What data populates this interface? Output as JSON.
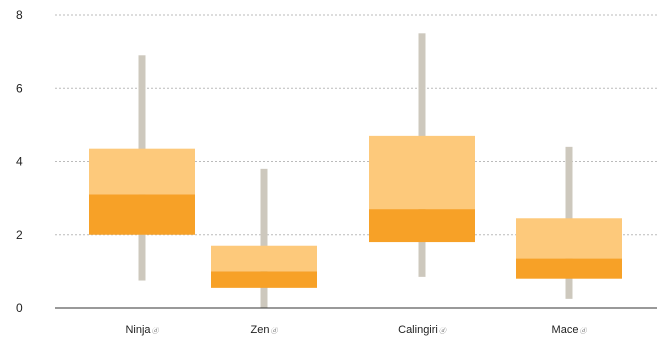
{
  "chart_data": {
    "type": "boxplot",
    "categories": [
      "Ninja",
      "Zen",
      "Calingiri",
      "Mace"
    ],
    "category_marker": "ⓓ",
    "ylim": [
      0,
      8
    ],
    "yticks": [
      0,
      2,
      4,
      6,
      8
    ],
    "grid": true,
    "series": [
      {
        "category": "Ninja",
        "min": 0.75,
        "q1": 2.0,
        "median": 3.1,
        "q3": 4.35,
        "max": 6.9
      },
      {
        "category": "Zen",
        "min": 0.0,
        "q1": 0.55,
        "median": 1.0,
        "q3": 1.7,
        "max": 3.8
      },
      {
        "category": "Calingiri",
        "min": 0.85,
        "q1": 1.8,
        "median": 2.7,
        "q3": 4.7,
        "max": 7.5
      },
      {
        "category": "Mace",
        "min": 0.25,
        "q1": 0.8,
        "median": 1.35,
        "q3": 2.45,
        "max": 4.4
      }
    ],
    "colors": {
      "whisker": "#cdc8bd",
      "lower_box": "#f7a127",
      "upper_box": "#fdc97b"
    }
  }
}
